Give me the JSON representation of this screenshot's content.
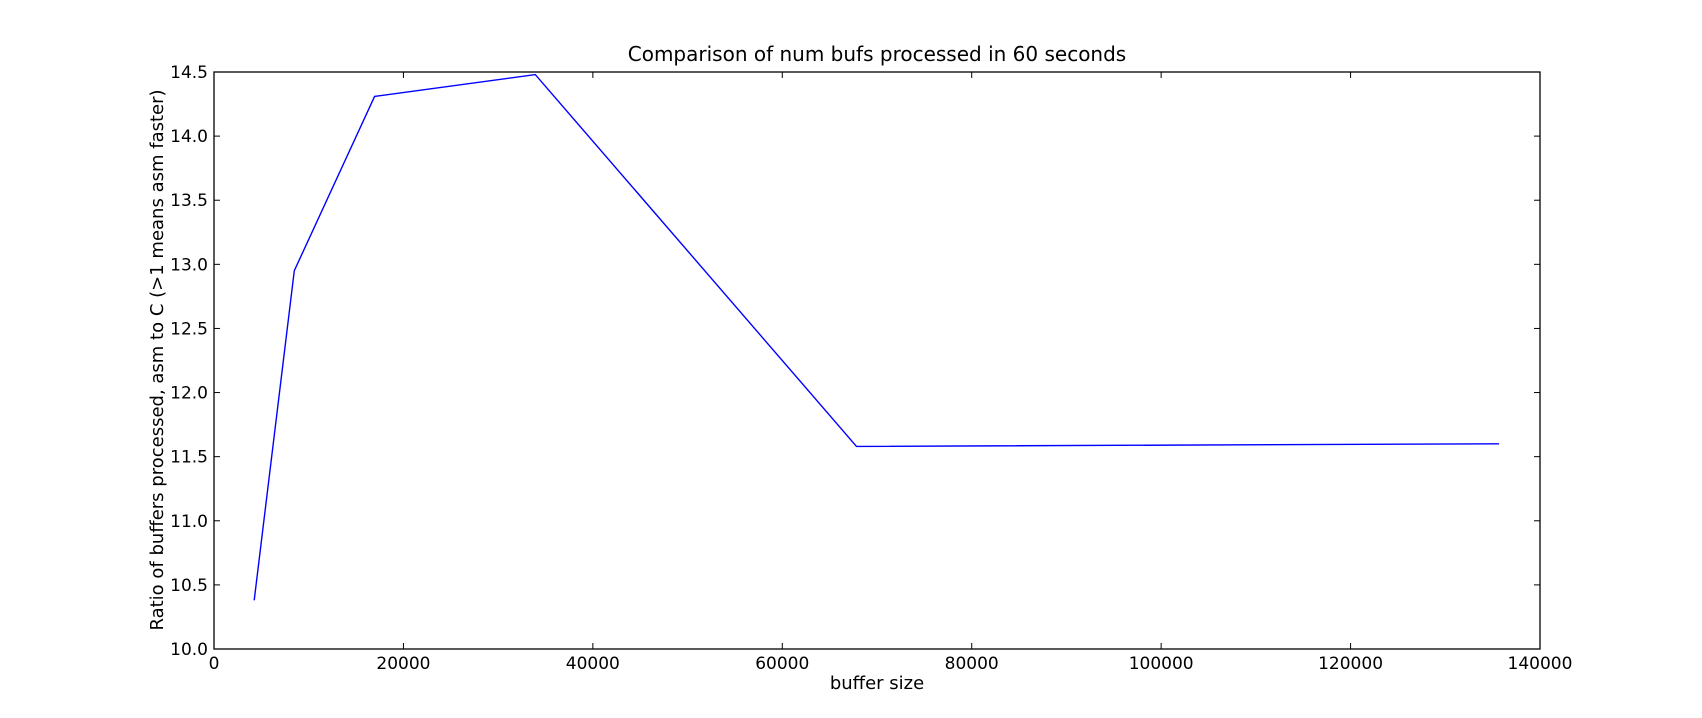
{
  "chart_data": {
    "type": "line",
    "title": "Comparison of num bufs processed in 60 seconds",
    "xlabel": "buffer size",
    "ylabel": "Ratio of buffers processed, asm to C (>1 means asm faster)",
    "xlim": [
      0,
      140000
    ],
    "ylim": [
      10.0,
      14.5
    ],
    "x_ticks": [
      0,
      20000,
      40000,
      60000,
      80000,
      100000,
      120000,
      140000
    ],
    "x_tick_labels": [
      "0",
      "20000",
      "40000",
      "60000",
      "80000",
      "100000",
      "120000",
      "140000"
    ],
    "y_ticks": [
      10.0,
      10.5,
      11.0,
      11.5,
      12.0,
      12.5,
      13.0,
      13.5,
      14.0,
      14.5
    ],
    "y_tick_labels": [
      "10.0",
      "10.5",
      "11.0",
      "11.5",
      "12.0",
      "12.5",
      "13.0",
      "13.5",
      "14.0",
      "14.5"
    ],
    "grid": false,
    "series": [
      {
        "color": "#0000ff",
        "x": [
          4240,
          8480,
          16960,
          33920,
          67840,
          135680
        ],
        "y": [
          10.38,
          12.95,
          14.31,
          14.48,
          11.58,
          11.6
        ]
      }
    ]
  }
}
